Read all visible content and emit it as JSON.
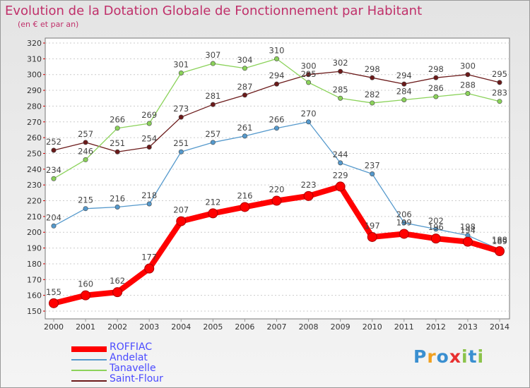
{
  "title": "Evolution de la Dotation Globale de Fonctionnement par Habitant",
  "subtitle": "(en € et par an)",
  "logo": "Proxiti",
  "chart_data": {
    "type": "line",
    "title": "Evolution de la Dotation Globale de Fonctionnement par Habitant",
    "subtitle": "(en € et par an)",
    "x": [
      2000,
      2001,
      2002,
      2003,
      2004,
      2005,
      2006,
      2007,
      2008,
      2009,
      2010,
      2011,
      2012,
      2013,
      2014
    ],
    "ylim": [
      150,
      320
    ],
    "yticks": [
      150,
      160,
      170,
      180,
      190,
      200,
      210,
      220,
      230,
      240,
      250,
      260,
      270,
      280,
      290,
      300,
      310,
      320
    ],
    "grid": "horizontal dashed",
    "legend_position": "bottom-left",
    "series": [
      {
        "name": "Saint-Flour",
        "color": "#6b1a1a",
        "values": [
          252,
          257,
          251,
          254,
          273,
          281,
          287,
          294,
          300,
          302,
          298,
          294,
          298,
          300,
          295
        ]
      },
      {
        "name": "Tanavelle",
        "color": "#8bd25a",
        "values": [
          234,
          246,
          266,
          269,
          301,
          307,
          304,
          310,
          295,
          285,
          282,
          284,
          286,
          288,
          283
        ]
      },
      {
        "name": "Andelat",
        "color": "#5599cc",
        "values": [
          204,
          215,
          216,
          218,
          251,
          257,
          261,
          266,
          270,
          244,
          237,
          206,
          202,
          198,
          189
        ]
      },
      {
        "name": "ROFFIAC",
        "color": "#ff0000",
        "values": [
          155,
          160,
          162,
          177,
          207,
          212,
          216,
          220,
          223,
          229,
          197,
          199,
          196,
          194,
          188
        ]
      }
    ]
  }
}
